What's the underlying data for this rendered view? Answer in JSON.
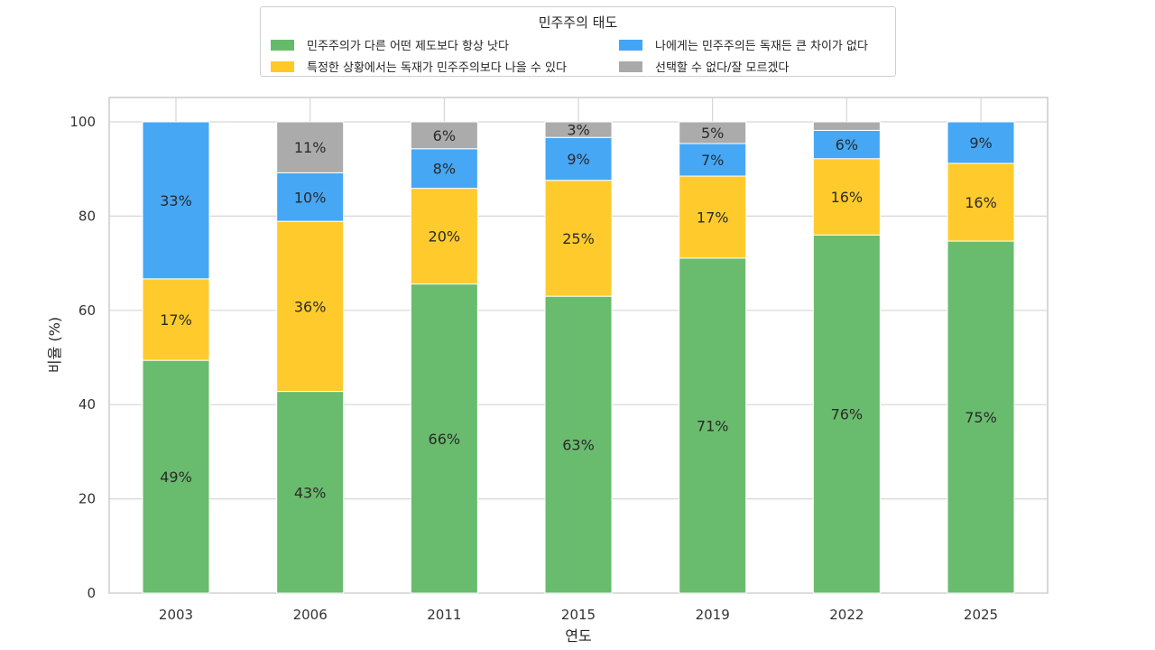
{
  "chart_data": {
    "type": "bar",
    "stacked": true,
    "legend_title": "민주주의 태도",
    "xlabel": "연도",
    "ylabel": "비율 (%)",
    "ylim": [
      0,
      100
    ],
    "yticks": [
      0,
      20,
      40,
      60,
      80,
      100
    ],
    "grid": true,
    "legend_position": "top-center",
    "categories": [
      "2003",
      "2006",
      "2011",
      "2015",
      "2019",
      "2022",
      "2025"
    ],
    "series": [
      {
        "name": "민주주의가 다른 어떤 제도보다 항상 낫다",
        "color": "#66BB6A",
        "values": [
          49.4,
          42.8,
          65.6,
          63.0,
          71.1,
          76.0,
          74.7
        ],
        "labels": [
          "49%",
          "43%",
          "66%",
          "63%",
          "71%",
          "76%",
          "75%"
        ]
      },
      {
        "name": "특정한 상황에서는 독재가 민주주의보다 나을 수 있다",
        "color": "#FFCA28",
        "values": [
          17.3,
          36.1,
          20.3,
          24.6,
          17.4,
          16.2,
          16.5
        ],
        "labels": [
          "17%",
          "36%",
          "20%",
          "25%",
          "17%",
          "16%",
          "16%"
        ]
      },
      {
        "name": "나에게는 민주주의든 독재든 큰 차이가 없다",
        "color": "#42A5F5",
        "values": [
          33.3,
          10.3,
          8.4,
          9.1,
          6.9,
          6.0,
          8.8
        ],
        "labels": [
          "33%",
          "10%",
          "8%",
          "9%",
          "7%",
          "6%",
          "9%"
        ]
      },
      {
        "name": "선택할 수 없다/잘 모르겠다",
        "color": "#A9A9A9",
        "values": [
          0,
          10.8,
          5.7,
          3.3,
          4.6,
          1.8,
          0
        ],
        "labels": [
          "",
          "11%",
          "6%",
          "3%",
          "5%",
          "",
          ""
        ]
      }
    ]
  }
}
